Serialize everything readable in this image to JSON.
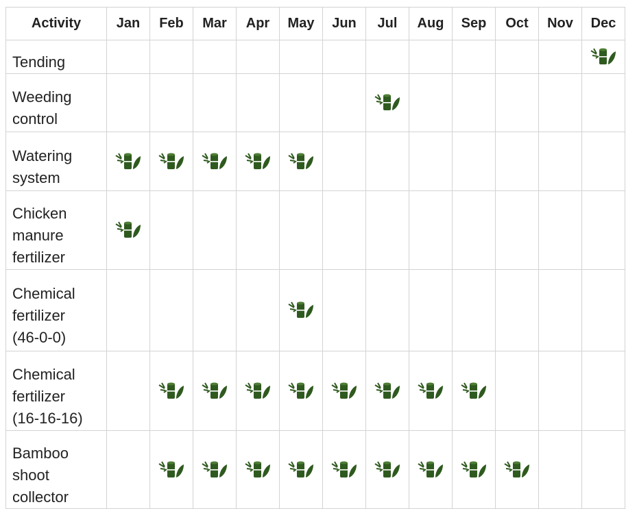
{
  "table": {
    "header": [
      "Activity",
      "Jan",
      "Feb",
      "Mar",
      "Apr",
      "May",
      "Jun",
      "Jul",
      "Aug",
      "Sep",
      "Oct",
      "Nov",
      "Dec"
    ],
    "rows": [
      {
        "activity": "Tending",
        "marks": [
          false,
          false,
          false,
          false,
          false,
          false,
          false,
          false,
          false,
          false,
          false,
          true
        ]
      },
      {
        "activity": "Weeding control",
        "marks": [
          false,
          false,
          false,
          false,
          false,
          false,
          true,
          false,
          false,
          false,
          false,
          false
        ]
      },
      {
        "activity": "Watering system",
        "marks": [
          true,
          true,
          true,
          true,
          true,
          false,
          false,
          false,
          false,
          false,
          false,
          false
        ]
      },
      {
        "activity": "Chicken manure fertilizer",
        "marks": [
          true,
          false,
          false,
          false,
          false,
          false,
          false,
          false,
          false,
          false,
          false,
          false
        ]
      },
      {
        "activity": "Chemical fertilizer (46-0-0)",
        "marks": [
          false,
          false,
          false,
          false,
          true,
          false,
          false,
          false,
          false,
          false,
          false,
          false
        ]
      },
      {
        "activity": "Chemical fertilizer (16-16-16)",
        "marks": [
          false,
          true,
          true,
          true,
          true,
          true,
          true,
          true,
          true,
          false,
          false,
          false
        ]
      },
      {
        "activity": "Bamboo shoot collector",
        "marks": [
          false,
          true,
          true,
          true,
          true,
          true,
          true,
          true,
          true,
          true,
          false,
          false
        ]
      }
    ]
  }
}
